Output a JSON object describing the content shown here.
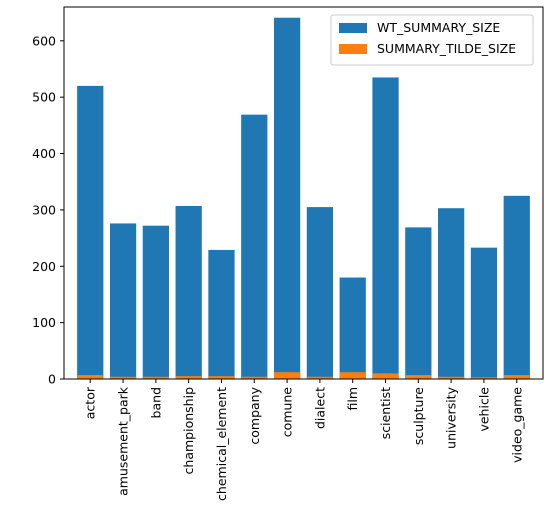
{
  "chart_data": {
    "type": "bar",
    "categories": [
      "actor",
      "amusement_park",
      "band",
      "championship",
      "chemical_element",
      "company",
      "comune",
      "dialect",
      "film",
      "scientist",
      "sculpture",
      "university",
      "vehicle",
      "video_game"
    ],
    "series": [
      {
        "name": "WT_SUMMARY_SIZE",
        "color": "#1f77b4",
        "values": [
          520,
          276,
          272,
          307,
          229,
          469,
          641,
          305,
          180,
          535,
          269,
          303,
          233,
          325
        ]
      },
      {
        "name": "SUMMARY_TILDE_SIZE",
        "color": "#ff7f0e",
        "values": [
          7,
          4,
          4,
          5,
          5,
          4,
          12,
          4,
          12,
          10,
          7,
          4,
          3,
          7
        ]
      }
    ],
    "stacking": "overlaid",
    "ylim": [
      0,
      660
    ],
    "yticks": [
      0,
      100,
      200,
      300,
      400,
      500,
      600
    ],
    "grid": false,
    "legend_position": "top-right"
  }
}
